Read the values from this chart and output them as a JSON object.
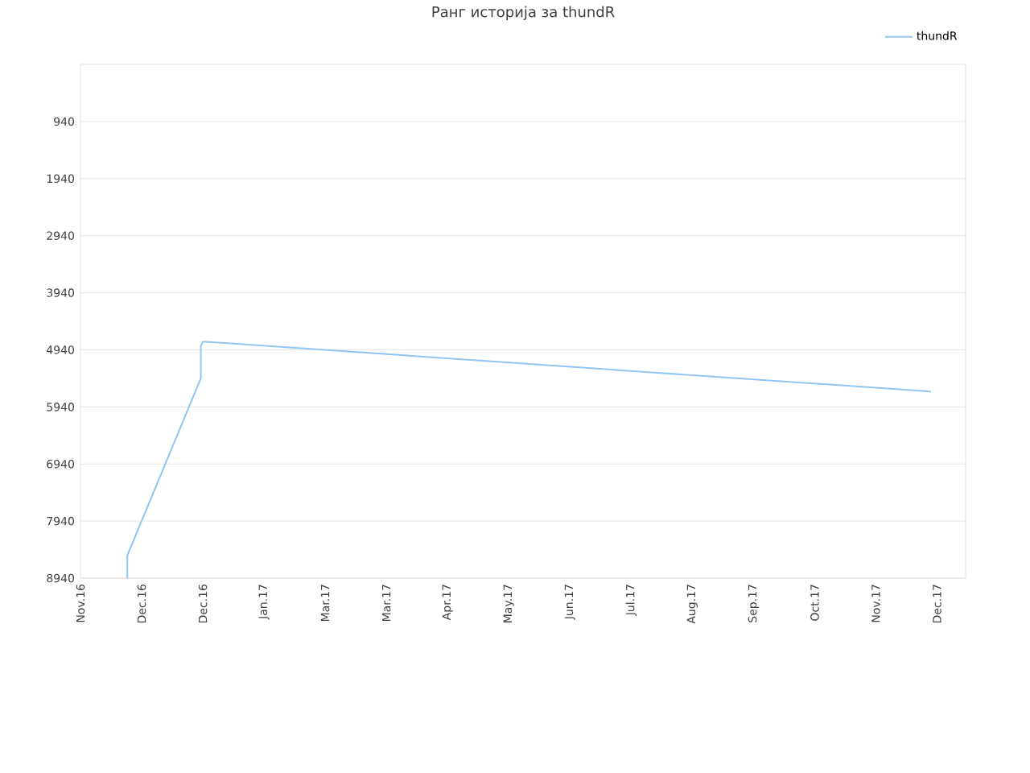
{
  "chart_data": {
    "type": "line",
    "title": "Ранг историја за thundR",
    "x": [
      "2016-11-24",
      "2016-11-24",
      "2016-12-30",
      "2016-12-30",
      "2016-12-31",
      "2017-01-02",
      "2017-12-23"
    ],
    "series": [
      {
        "name": "thundR",
        "color": "#90c4f4",
        "values": [
          8940,
          8540,
          5440,
          4880,
          4800,
          4800,
          5670
        ]
      }
    ],
    "xlim": [
      "2016-11-01",
      "2018-01-09"
    ],
    "xticks": [
      {
        "value": "2016-11-01",
        "label": "Nov.16"
      },
      {
        "value": "2016-12-01",
        "label": "Dec.16"
      },
      {
        "value": "2016-12-31",
        "label": "Dec.16"
      },
      {
        "value": "2017-01-30",
        "label": "Jan.17"
      },
      {
        "value": "2017-03-01",
        "label": "Mar.17"
      },
      {
        "value": "2017-03-31",
        "label": "Mar.17"
      },
      {
        "value": "2017-04-30",
        "label": "Apr.17"
      },
      {
        "value": "2017-05-30",
        "label": "May.17"
      },
      {
        "value": "2017-06-29",
        "label": "Jun.17"
      },
      {
        "value": "2017-07-29",
        "label": "Jul.17"
      },
      {
        "value": "2017-08-28",
        "label": "Aug.17"
      },
      {
        "value": "2017-09-27",
        "label": "Sep.17"
      },
      {
        "value": "2017-10-27",
        "label": "Oct.17"
      },
      {
        "value": "2017-11-26",
        "label": "Nov.17"
      },
      {
        "value": "2017-12-26",
        "label": "Dec.17"
      }
    ],
    "ylim": [
      8940,
      -60
    ],
    "yticks": [
      940,
      1940,
      2940,
      3940,
      4940,
      5940,
      6940,
      7940,
      8940
    ],
    "grid": "y",
    "legend": "top right",
    "marker": "none",
    "line_style": "solid"
  }
}
